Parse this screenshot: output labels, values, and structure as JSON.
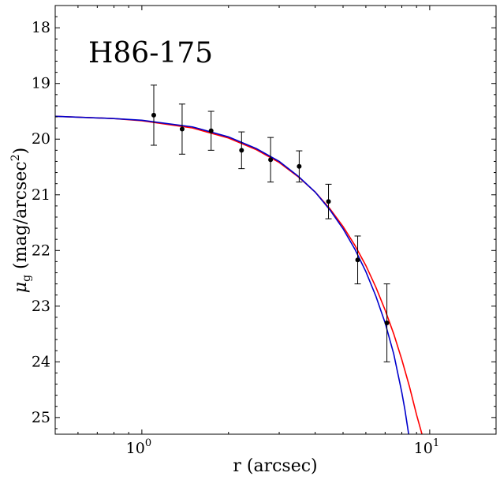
{
  "chart_data": {
    "type": "scatter",
    "annotation": "H86-175",
    "xlabel": "r (arcsec)",
    "ylabel_parts": {
      "base": "μ",
      "sub": "g",
      "open": " (mag/arcsec",
      "sup": "2",
      "close": ")"
    },
    "x_scale": "log",
    "xlim": [
      0.5,
      17
    ],
    "ylim": [
      25.3,
      17.6
    ],
    "y_inverted": true,
    "x_ticks": [
      {
        "value": 1,
        "base": "10",
        "exp": "0"
      },
      {
        "value": 10,
        "base": "10",
        "exp": "1"
      }
    ],
    "y_ticks": [
      18,
      19,
      20,
      21,
      22,
      23,
      24,
      25
    ],
    "grid": false,
    "points": {
      "name": "",
      "color": "#000000",
      "x": [
        1.1,
        1.38,
        1.74,
        2.22,
        2.8,
        3.52,
        4.45,
        5.62,
        7.1
      ],
      "y": [
        19.57,
        19.82,
        19.85,
        20.2,
        20.37,
        20.49,
        21.12,
        22.17,
        23.3
      ],
      "err": [
        0.54,
        0.45,
        0.35,
        0.33,
        0.4,
        0.28,
        0.31,
        0.43,
        0.7
      ]
    },
    "series": [
      {
        "name": "",
        "color": "#ff0000",
        "x": [
          0.5,
          0.8,
          1.0,
          1.5,
          2.0,
          2.5,
          3.0,
          3.5,
          4.0,
          4.5,
          5.0,
          5.5,
          6.0,
          6.5,
          7.0,
          7.5,
          8.0,
          8.5,
          9.0,
          9.4
        ],
        "y": [
          19.59,
          19.63,
          19.67,
          19.8,
          19.98,
          20.19,
          20.42,
          20.68,
          20.95,
          21.25,
          21.57,
          21.91,
          22.27,
          22.66,
          23.07,
          23.5,
          23.96,
          24.44,
          24.95,
          25.3
        ]
      },
      {
        "name": "",
        "color": "#0000cc",
        "x": [
          0.5,
          0.8,
          1.0,
          1.5,
          2.0,
          2.5,
          3.0,
          3.5,
          4.0,
          4.5,
          5.0,
          5.5,
          6.0,
          6.5,
          7.0,
          7.5,
          8.0,
          8.2,
          8.45
        ],
        "y": [
          19.59,
          19.63,
          19.66,
          19.78,
          19.96,
          20.17,
          20.4,
          20.67,
          20.95,
          21.27,
          21.61,
          21.98,
          22.38,
          22.82,
          23.3,
          23.86,
          24.55,
          24.86,
          25.3
        ]
      }
    ]
  }
}
